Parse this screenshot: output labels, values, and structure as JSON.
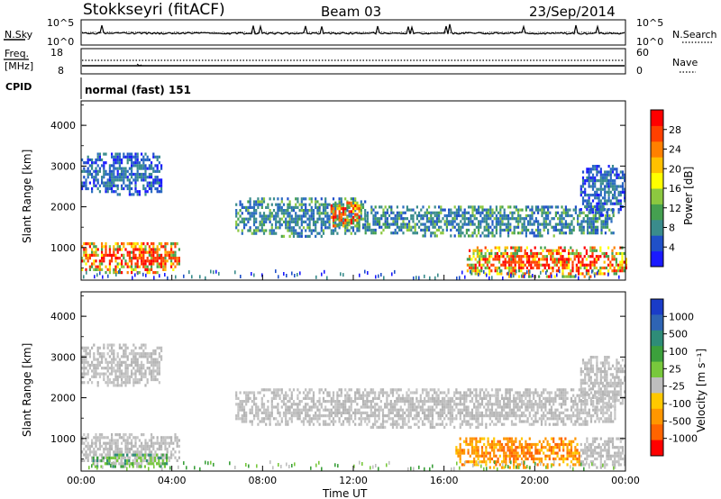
{
  "header": {
    "station": "Stokkseyri (fitACF)",
    "beam": "Beam 03",
    "date": "23/Sep/2014"
  },
  "noise_panel": {
    "left_label": "N.Sky",
    "right_label": "N.Search",
    "left_ticks": [
      "10^5",
      "10^0"
    ],
    "right_ticks": [
      "10^5",
      "10^0"
    ]
  },
  "freq_panel": {
    "left_label_1": "Freq.",
    "left_label_2": "[MHz]",
    "right_label": "Nave",
    "left_ticks": [
      "18",
      "8"
    ],
    "right_ticks": [
      "60",
      "0"
    ]
  },
  "cpid_panel": {
    "label": "CPID",
    "text": "normal (fast) 151"
  },
  "chart_data": [
    {
      "type": "heatmap",
      "panel": "power",
      "xlabel": "",
      "ylabel": "Slant Range [km]",
      "y_ticks": [
        "1000",
        "2000",
        "3000",
        "4000"
      ],
      "ylim": [
        200,
        4600
      ],
      "colorbar": {
        "label": "Power [dB]",
        "ticks": [
          "4",
          "8",
          "12",
          "16",
          "20",
          "24",
          "28"
        ],
        "colors": [
          "#1a1aff",
          "#2050c8",
          "#3a8c8c",
          "#45a050",
          "#8cc840",
          "#ffff00",
          "#ffc000",
          "#ff8000",
          "#ff4000",
          "#ff0000"
        ]
      },
      "regions": [
        {
          "t0": 0.0,
          "t1": 3.5,
          "r0": 2300,
          "r1": 3400,
          "strength": "low"
        },
        {
          "t0": 0.0,
          "t1": 4.3,
          "r0": 400,
          "r1": 1200,
          "strength": "high"
        },
        {
          "t0": 6.8,
          "t1": 12.5,
          "r0": 1300,
          "r1": 2300,
          "strength": "medium"
        },
        {
          "t0": 11.0,
          "t1": 12.3,
          "r0": 1500,
          "r1": 2200,
          "strength": "high"
        },
        {
          "t0": 12.5,
          "t1": 23.5,
          "r0": 1300,
          "r1": 2100,
          "strength": "medium"
        },
        {
          "t0": 17.0,
          "t1": 24.0,
          "r0": 300,
          "r1": 1100,
          "strength": "high"
        },
        {
          "t0": 22.0,
          "t1": 24.0,
          "r0": 1800,
          "r1": 3100,
          "strength": "low"
        }
      ]
    },
    {
      "type": "heatmap",
      "panel": "velocity",
      "xlabel": "Time UT",
      "ylabel": "Slant Range [km]",
      "x_ticks": [
        "00:00",
        "04:00",
        "08:00",
        "12:00",
        "16:00",
        "20:00",
        "00:00"
      ],
      "y_ticks": [
        "1000",
        "2000",
        "3000",
        "4000"
      ],
      "xlim": [
        0,
        24
      ],
      "ylim": [
        200,
        4600
      ],
      "colorbar": {
        "label": "Velocity [m s⁻¹]",
        "ticks": [
          "1000",
          "500",
          "100",
          "25",
          "-25",
          "-100",
          "-500",
          "-1000"
        ],
        "colors": [
          "#1a3cc8",
          "#2e64b4",
          "#2e8c78",
          "#3ca03c",
          "#78c83c",
          "#bebebe",
          "#ffc800",
          "#ff9600",
          "#ff6400",
          "#ff0000"
        ]
      },
      "regions": [
        {
          "t0": 0.0,
          "t1": 3.5,
          "r0": 2300,
          "r1": 3400,
          "class": "near-zero"
        },
        {
          "t0": 0.0,
          "t1": 4.3,
          "r0": 400,
          "r1": 1200,
          "class": "near-zero"
        },
        {
          "t0": 0.5,
          "t1": 3.8,
          "r0": 300,
          "r1": 700,
          "class": "positive"
        },
        {
          "t0": 6.8,
          "t1": 23.5,
          "r0": 1300,
          "r1": 2300,
          "class": "near-zero"
        },
        {
          "t0": 16.5,
          "t1": 22.0,
          "r0": 300,
          "r1": 1100,
          "class": "negative"
        },
        {
          "t0": 22.0,
          "t1": 24.0,
          "r0": 300,
          "r1": 1100,
          "class": "near-zero"
        },
        {
          "t0": 22.0,
          "t1": 24.0,
          "r0": 1800,
          "r1": 3100,
          "class": "near-zero"
        }
      ]
    }
  ]
}
